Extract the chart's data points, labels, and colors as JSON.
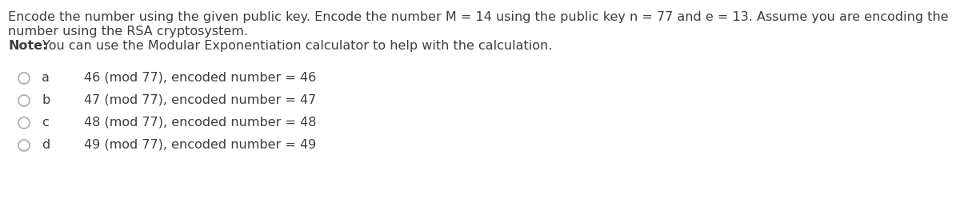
{
  "title_line1": "Encode the number using the given public key. Encode the number M = 14 using the public key n = 77 and e = 13. Assume you are encoding the",
  "title_line2": "number using the RSA cryptosystem.",
  "note_bold": "Note:",
  "note_rest": " You can use the Modular Exponentiation calculator to help with the calculation.",
  "options": [
    {
      "label": "a",
      "text": "46 (mod 77), encoded number = 46"
    },
    {
      "label": "b",
      "text": "47 (mod 77), encoded number = 47"
    },
    {
      "label": "c",
      "text": "48 (mod 77), encoded number = 48"
    },
    {
      "label": "d",
      "text": "49 (mod 77), encoded number = 49"
    }
  ],
  "bg_color": "#ffffff",
  "text_color": "#3d3d3d",
  "note_color": "#3d3d3d",
  "font_size": 11.5,
  "option_font_size": 11.5,
  "circle_color": "#b0b0b0",
  "circle_linewidth": 1.3
}
